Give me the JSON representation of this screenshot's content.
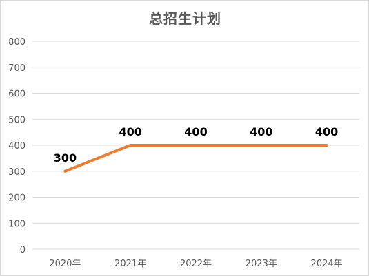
{
  "chart_data": {
    "type": "line",
    "title": "总招生计划",
    "xlabel": "",
    "ylabel": "",
    "categories": [
      "2020年",
      "2021年",
      "2022年",
      "2023年",
      "2024年"
    ],
    "series": [
      {
        "values": [
          300,
          400,
          400,
          400,
          400
        ]
      }
    ],
    "data_labels": [
      "300",
      "400",
      "400",
      "400",
      "400"
    ],
    "ylim": [
      0,
      800
    ],
    "yticks": [
      0,
      100,
      200,
      300,
      400,
      500,
      600,
      700,
      800
    ],
    "ytick_labels": [
      "0",
      "100",
      "200",
      "300",
      "400",
      "500",
      "600",
      "700",
      "800"
    ],
    "grid": true,
    "legend": "none",
    "colors": {
      "line": "#ED7D31",
      "grid": "#D9D9D9",
      "axis_text": "#595959",
      "title": "#595959",
      "data_label": "#000000"
    }
  }
}
